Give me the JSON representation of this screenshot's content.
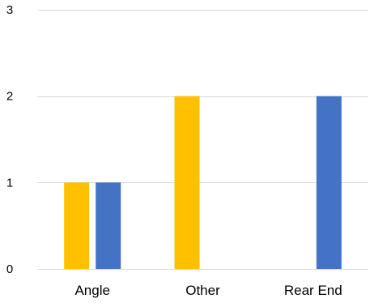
{
  "chart_data": {
    "type": "bar",
    "categories": [
      "Angle",
      "Other",
      "Rear End"
    ],
    "series": [
      {
        "values": [
          1,
          2,
          0
        ],
        "color": "#FFC000"
      },
      {
        "values": [
          1,
          0,
          2
        ],
        "color": "#4472C4"
      }
    ],
    "title": "",
    "xlabel": "",
    "ylabel": "",
    "ylim": [
      0,
      3
    ],
    "yticks": [
      0,
      1,
      2,
      3
    ],
    "grid": true,
    "legend": "none",
    "colors": {
      "gridline": "#D9D9D9",
      "text": "#000000"
    }
  }
}
